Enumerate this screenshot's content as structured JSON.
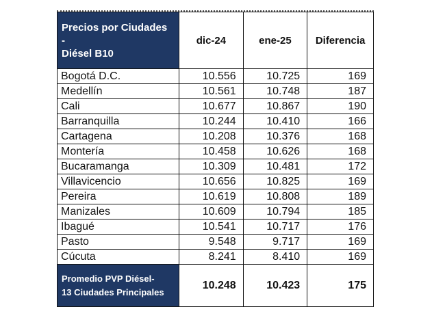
{
  "table": {
    "header": {
      "title_line1": "Precios por Ciudades",
      "title_line2": "-",
      "title_line3": "Diésel B10",
      "col_dic": "dic-24",
      "col_ene": "ene-25",
      "col_diff": "Diferencia"
    },
    "rows": [
      {
        "city": "Bogotá D.C.",
        "dic": "10.556",
        "ene": "10.725",
        "diff": "169"
      },
      {
        "city": "Medellín",
        "dic": "10.561",
        "ene": "10.748",
        "diff": "187"
      },
      {
        "city": "Cali",
        "dic": "10.677",
        "ene": "10.867",
        "diff": "190"
      },
      {
        "city": "Barranquilla",
        "dic": "10.244",
        "ene": "10.410",
        "diff": "166"
      },
      {
        "city": "Cartagena",
        "dic": "10.208",
        "ene": "10.376",
        "diff": "168"
      },
      {
        "city": "Montería",
        "dic": "10.458",
        "ene": "10.626",
        "diff": "168"
      },
      {
        "city": "Bucaramanga",
        "dic": "10.309",
        "ene": "10.481",
        "diff": "172"
      },
      {
        "city": "Villavicencio",
        "dic": "10.656",
        "ene": "10.825",
        "diff": "169"
      },
      {
        "city": "Pereira",
        "dic": "10.619",
        "ene": "10.808",
        "diff": "189"
      },
      {
        "city": "Manizales",
        "dic": "10.609",
        "ene": "10.794",
        "diff": "185"
      },
      {
        "city": "Ibagué",
        "dic": "10.541",
        "ene": "10.717",
        "diff": "176"
      },
      {
        "city": "Pasto",
        "dic": "9.548",
        "ene": "9.717",
        "diff": "169"
      },
      {
        "city": "Cúcuta",
        "dic": "8.241",
        "ene": "8.410",
        "diff": "169"
      }
    ],
    "footer": {
      "label_line1": "Promedio PVP Diésel-",
      "label_line2": "13 Ciudades Principales",
      "dic": "10.248",
      "ene": "10.423",
      "diff": "175"
    }
  },
  "colors": {
    "header_navy": "#1f3864",
    "header_text": "#ffffff",
    "border": "#111111"
  }
}
